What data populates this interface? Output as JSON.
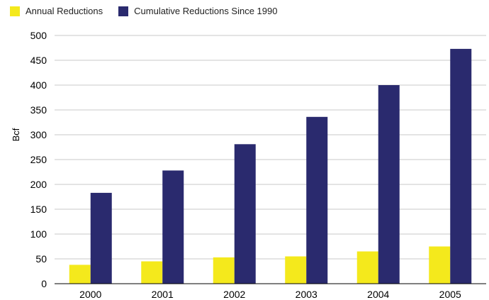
{
  "colors": {
    "annual": "#f4e91c",
    "cumulative": "#2a2a6e",
    "grid": "#c9c9c9",
    "axis": "#000000"
  },
  "chart_data": {
    "type": "bar",
    "ylabel": "Bcf",
    "xlabel": "",
    "ylim": [
      0,
      500
    ],
    "yticks": [
      "0",
      "50",
      "100",
      "150",
      "200",
      "250",
      "300",
      "350",
      "400",
      "450",
      "500"
    ],
    "grid": true,
    "legend_position": "top-left",
    "categories": [
      "2000",
      "2001",
      "2002",
      "2003",
      "2004",
      "2005"
    ],
    "series": [
      {
        "name": "Annual Reductions",
        "values": [
          38,
          45,
          53,
          55,
          65,
          75
        ]
      },
      {
        "name": "Cumulative Reductions Since 1990",
        "values": [
          183,
          228,
          281,
          336,
          400,
          473
        ]
      }
    ]
  }
}
